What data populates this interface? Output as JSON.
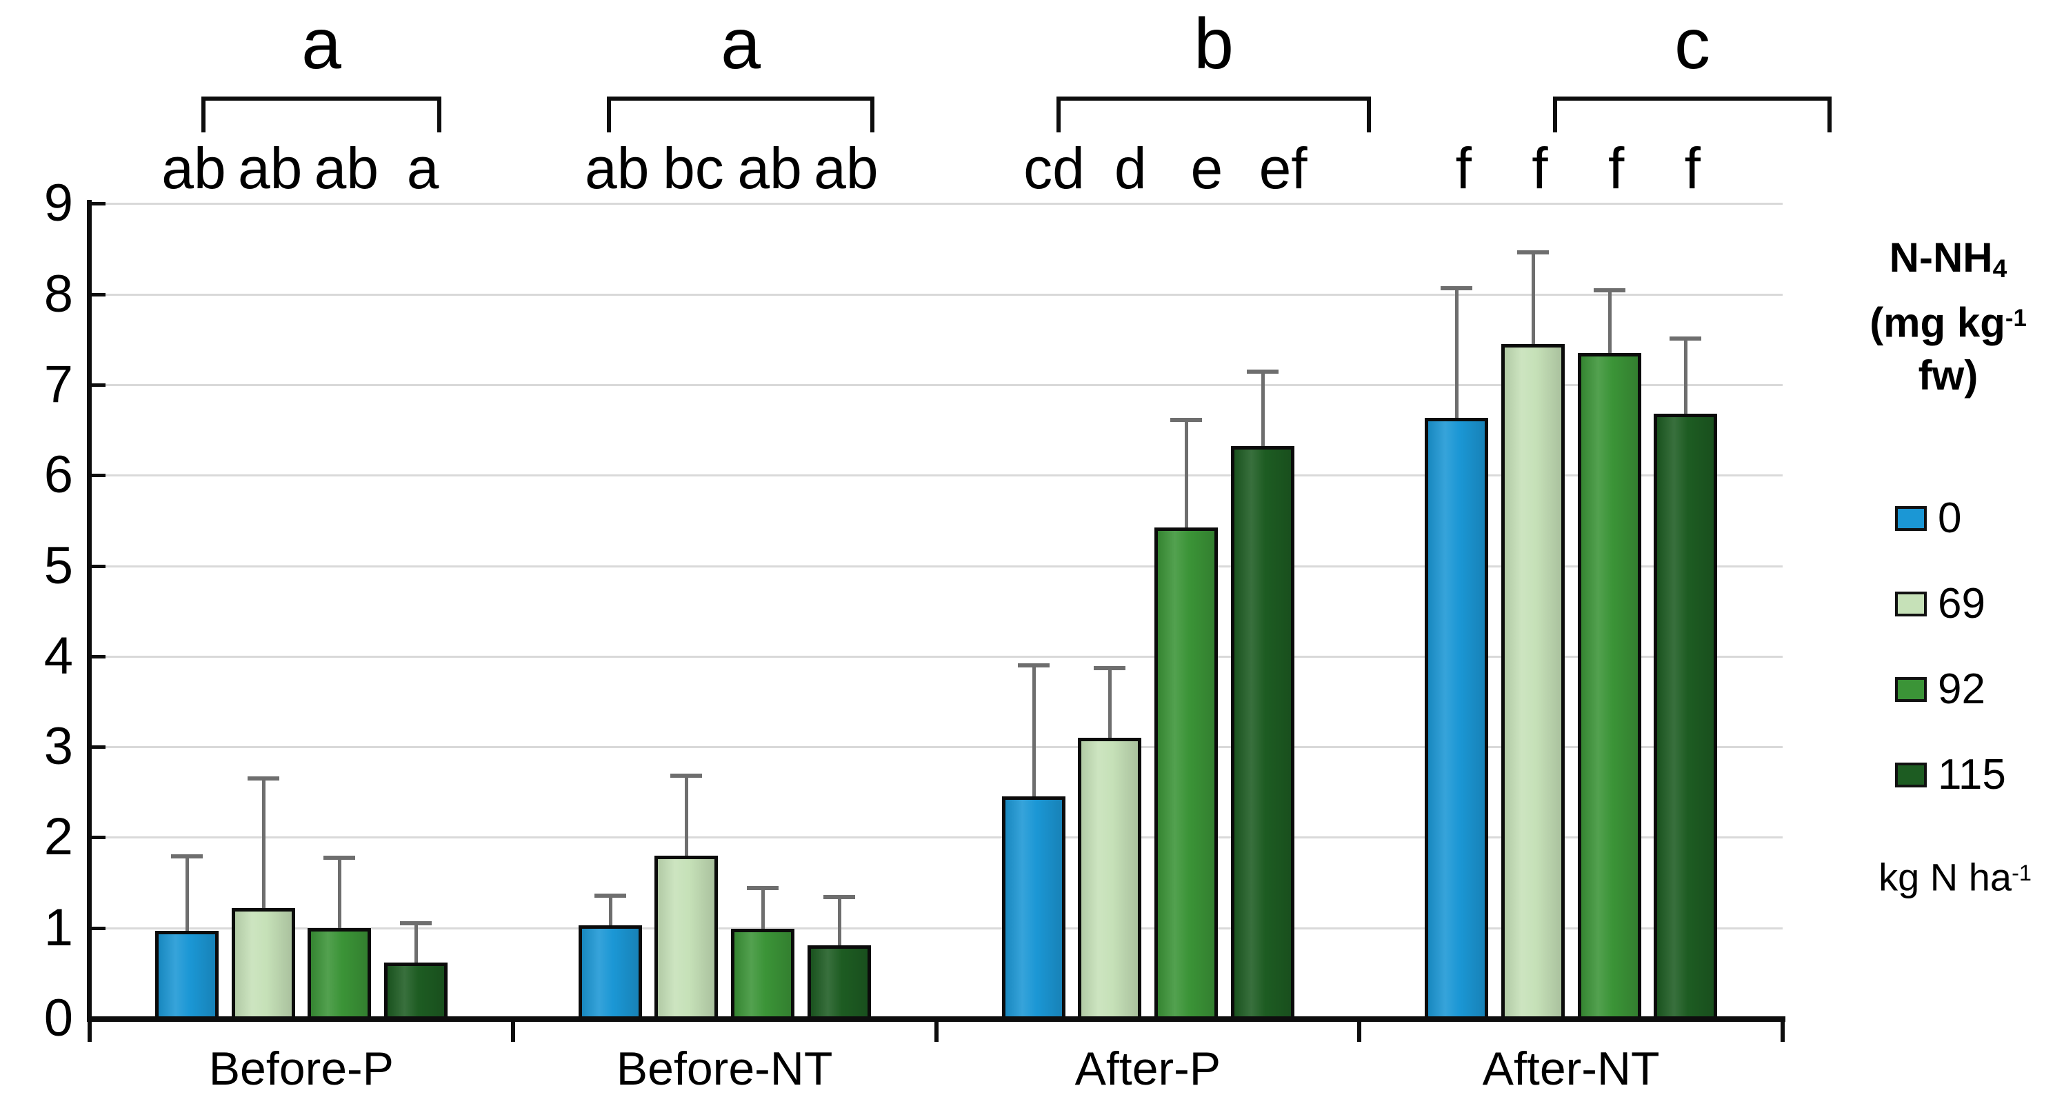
{
  "chart_data": {
    "type": "bar",
    "title": "N-NH4 (mg kg-1 fw)",
    "xlabel": "",
    "ylabel": "",
    "ylim": [
      0,
      9
    ],
    "ytick_labels": [
      "0",
      "1",
      "2",
      "3",
      "4",
      "5",
      "6",
      "7",
      "8",
      "9"
    ],
    "grid": true,
    "legend_position": "right",
    "categories": [
      "Before-P",
      "Before-NT",
      "After-P",
      "After-NT"
    ],
    "series": [
      {
        "name": "0",
        "color": "#1b97d5",
        "values": [
          0.97,
          1.03,
          2.45,
          6.63
        ],
        "error_plus": [
          0.83,
          0.33,
          1.46,
          1.44
        ]
      },
      {
        "name": "69",
        "color": "#c6e1b8",
        "values": [
          1.22,
          1.8,
          3.1,
          7.45
        ],
        "error_plus": [
          1.44,
          0.89,
          0.78,
          1.02
        ]
      },
      {
        "name": "92",
        "color": "#3b9437",
        "values": [
          1.0,
          0.99,
          5.42,
          7.35
        ],
        "error_plus": [
          0.78,
          0.46,
          1.2,
          0.7
        ]
      },
      {
        "name": "115",
        "color": "#1d5c22",
        "values": [
          0.62,
          0.81,
          6.32,
          6.68
        ],
        "error_plus": [
          0.44,
          0.54,
          0.83,
          0.84
        ]
      }
    ],
    "bar_letters": [
      [
        "ab",
        "ab",
        "ab",
        "a"
      ],
      [
        "ab",
        "bc",
        "ab",
        "ab"
      ],
      [
        "cd",
        "d",
        "e",
        "ef"
      ],
      [
        "f",
        "f",
        "f",
        "f"
      ]
    ],
    "group_letters": [
      "a",
      "a",
      "b",
      "c"
    ],
    "legend": {
      "title_line1": {
        "main": "N-NH",
        "sub": "4"
      },
      "title_line2": {
        "pre": "(mg kg",
        "sup": "-1",
        "post": " fw)"
      },
      "entries": [
        "0",
        "69",
        "92",
        "115"
      ],
      "note": {
        "main": "kg N ha",
        "sup": "-1"
      }
    },
    "colors": {
      "bar_border": "#0b0b0b",
      "error_bar": "#6e6e6e",
      "gridline": "#d9d9d9",
      "axis": "#0d0d0d",
      "text": "#000000"
    }
  }
}
